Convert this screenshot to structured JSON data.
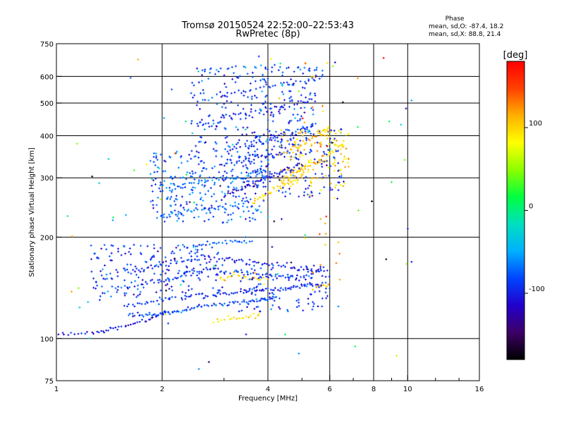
{
  "chart_data": {
    "type": "scatter",
    "title": "Tromsø 20150524 22:52:00–22:53:43",
    "subtitle": "RwPretec (8p)",
    "xlabel": "Frequency [MHz]",
    "ylabel": "Stationary phase Virtual Height [km]",
    "x_scale": "log",
    "y_scale": "log",
    "xlim": [
      1,
      16
    ],
    "ylim": [
      75,
      750
    ],
    "x_ticks": [
      1,
      2,
      4,
      6,
      8,
      10,
      16
    ],
    "x_tick_labels": [
      "1",
      "2",
      "4",
      "6",
      "8",
      "10",
      "16"
    ],
    "x_minor_ticks": [
      3,
      5,
      7,
      9,
      12,
      14
    ],
    "y_ticks": [
      75,
      100,
      200,
      300,
      400,
      500,
      600,
      750
    ],
    "y_tick_labels": [
      "75",
      "100",
      "200",
      "300",
      "400",
      "500",
      "600",
      "750"
    ],
    "grid": true,
    "phase_stats": {
      "heading": "Phase",
      "line_o": "mean, sd,O: -87.4, 18.2",
      "line_x": "mean, sd,X:  88.8, 21.4"
    },
    "colorbar": {
      "label": "[deg]",
      "range": [
        -180,
        180
      ],
      "ticks": [
        100,
        0,
        -100
      ],
      "tick_labels": [
        "100",
        "0",
        "-100"
      ],
      "colormap": [
        "#000000",
        "#3d0066",
        "#2200cc",
        "#0044ff",
        "#00b0ff",
        "#00e0c0",
        "#00ff40",
        "#8cff00",
        "#ffff00",
        "#ffb000",
        "#ff4000",
        "#ff0000"
      ]
    },
    "series": [
      {
        "kind": "trace",
        "segments": [
          [
            [
              1.0,
              103
            ],
            [
              1.3,
              104
            ],
            [
              1.5,
              108
            ],
            [
              1.8,
              113
            ],
            [
              2.05,
              121
            ]
          ]
        ],
        "phase": -105,
        "spread": 0.006,
        "density": 12
      },
      {
        "kind": "trace",
        "segments": [
          [
            [
              1.6,
              118
            ],
            [
              1.9,
              117
            ],
            [
              2.2,
              120
            ],
            [
              2.6,
              125
            ],
            [
              3.2,
              128
            ],
            [
              3.8,
              130
            ],
            [
              4.2,
              133
            ]
          ]
        ],
        "phase": -85,
        "spread": 0.008,
        "density": 16
      },
      {
        "kind": "trace",
        "segments": [
          [
            [
              1.55,
              125
            ],
            [
              2.0,
              130
            ],
            [
              2.8,
              135
            ],
            [
              3.5,
              138
            ],
            [
              4.2,
              140
            ],
            [
              5.0,
              143
            ],
            [
              5.8,
              146
            ]
          ]
        ],
        "phase": -95,
        "spread": 0.01,
        "density": 16
      },
      {
        "kind": "trace",
        "segments": [
          [
            [
              1.5,
              140
            ],
            [
              1.9,
              148
            ],
            [
              2.3,
              155
            ],
            [
              2.7,
              160
            ],
            [
              3.2,
              158
            ],
            [
              3.8,
              155
            ],
            [
              4.5,
              152
            ],
            [
              5.5,
              157
            ]
          ]
        ],
        "phase": -90,
        "spread": 0.012,
        "density": 14
      },
      {
        "kind": "trace",
        "segments": [
          [
            [
              1.6,
              155
            ],
            [
              1.9,
              165
            ],
            [
              2.2,
              170
            ],
            [
              2.6,
              175
            ],
            [
              3.1,
              172
            ],
            [
              3.6,
              168
            ],
            [
              4.2,
              165
            ],
            [
              5.0,
              160
            ],
            [
              5.8,
              162
            ]
          ]
        ],
        "phase": -100,
        "spread": 0.012,
        "density": 12
      },
      {
        "kind": "trace",
        "segments": [
          [
            [
              2.2,
              185
            ],
            [
              2.7,
              190
            ],
            [
              3.2,
              195
            ],
            [
              3.6,
              195
            ]
          ]
        ],
        "phase": -75,
        "spread": 0.01,
        "density": 10
      },
      {
        "kind": "trace",
        "segments": [
          [
            [
              2.0,
              230
            ],
            [
              2.4,
              240
            ],
            [
              2.8,
              245
            ],
            [
              3.3,
              250
            ],
            [
              3.8,
              245
            ]
          ]
        ],
        "phase": -70,
        "spread": 0.012,
        "density": 10
      },
      {
        "kind": "trace",
        "segments": [
          [
            [
              2.0,
              280
            ],
            [
              2.5,
              290
            ],
            [
              3.0,
              300
            ],
            [
              3.5,
              305
            ],
            [
              4.0,
              310
            ]
          ]
        ],
        "phase": -65,
        "spread": 0.014,
        "density": 12
      },
      {
        "kind": "trace",
        "segments": [
          [
            [
              3.0,
              265
            ],
            [
              3.5,
              285
            ],
            [
              4.0,
              300
            ],
            [
              4.5,
              315
            ],
            [
              5.0,
              330
            ]
          ]
        ],
        "phase": -110,
        "spread": 0.01,
        "density": 16
      },
      {
        "kind": "trace",
        "segments": [
          [
            [
              3.0,
              330
            ],
            [
              3.6,
              345
            ],
            [
              4.2,
              350
            ],
            [
              5.0,
              360
            ]
          ]
        ],
        "phase": -95,
        "spread": 0.012,
        "density": 12
      },
      {
        "kind": "trace",
        "segments": [
          [
            [
              3.0,
              360
            ],
            [
              3.6,
              380
            ],
            [
              4.2,
              395
            ],
            [
              4.8,
              410
            ],
            [
              5.5,
              430
            ]
          ]
        ],
        "phase": -90,
        "spread": 0.012,
        "density": 12
      },
      {
        "kind": "trace",
        "segments": [
          [
            [
              2.5,
              430
            ],
            [
              3.0,
              450
            ],
            [
              3.8,
              470
            ],
            [
              4.5,
              490
            ],
            [
              5.5,
              520
            ]
          ]
        ],
        "phase": -100,
        "spread": 0.014,
        "density": 12
      },
      {
        "kind": "trace",
        "segments": [
          [
            [
              2.5,
              500
            ],
            [
              3.2,
              540
            ],
            [
              4.0,
              560
            ],
            [
              5.0,
              580
            ],
            [
              5.8,
              600
            ]
          ]
        ],
        "phase": -85,
        "spread": 0.012,
        "density": 10
      },
      {
        "kind": "trace",
        "segments": [
          [
            [
              2.5,
              620
            ],
            [
              3.2,
              640
            ],
            [
              4.0,
              640
            ],
            [
              5.0,
              630
            ],
            [
              5.8,
              630
            ]
          ]
        ],
        "phase": -70,
        "spread": 0.01,
        "density": 6
      },
      {
        "kind": "trace",
        "segments": [
          [
            [
              5.5,
              160
            ],
            [
              6.0,
              162
            ]
          ]
        ],
        "phase": -95,
        "spread": 0.01,
        "density": 4
      },
      {
        "kind": "trace",
        "segments": [
          [
            [
              2.8,
              112
            ],
            [
              3.3,
              115
            ],
            [
              3.8,
              118
            ]
          ]
        ],
        "phase": 95,
        "spread": 0.008,
        "density": 10
      },
      {
        "kind": "trace",
        "segments": [
          [
            [
              2.9,
              150
            ],
            [
              3.2,
              155
            ],
            [
              3.6,
              150
            ],
            [
              4.0,
              148
            ]
          ]
        ],
        "phase": 100,
        "spread": 0.012,
        "density": 8
      },
      {
        "kind": "trace",
        "segments": [
          [
            [
              3.6,
              255
            ],
            [
              4.0,
              270
            ],
            [
              4.5,
              290
            ],
            [
              4.9,
              300
            ]
          ]
        ],
        "phase": 95,
        "spread": 0.014,
        "density": 12
      },
      {
        "kind": "trace",
        "segments": [
          [
            [
              4.3,
              295
            ],
            [
              4.8,
              310
            ],
            [
              5.2,
              325
            ],
            [
              5.8,
              345
            ],
            [
              6.6,
              380
            ]
          ]
        ],
        "phase": 100,
        "spread": 0.016,
        "density": 14
      },
      {
        "kind": "trace",
        "segments": [
          [
            [
              4.6,
              360
            ],
            [
              5.0,
              380
            ],
            [
              5.5,
              400
            ],
            [
              6.0,
              420
            ]
          ]
        ],
        "phase": 110,
        "spread": 0.014,
        "density": 8
      },
      {
        "kind": "trace",
        "segments": [
          [
            [
              5.3,
              140
            ],
            [
              5.7,
              143
            ],
            [
              6.0,
              145
            ]
          ]
        ],
        "phase": 110,
        "spread": 0.01,
        "density": 4
      },
      {
        "kind": "cloud",
        "x_range": [
          1.25,
          3.0
        ],
        "y_range": [
          130,
          190
        ],
        "n": 190,
        "phase": -90,
        "phase_sd": 18
      },
      {
        "kind": "cloud",
        "x_range": [
          1.85,
          3.9
        ],
        "y_range": [
          220,
          360
        ],
        "n": 260,
        "phase": -80,
        "phase_sd": 22
      },
      {
        "kind": "cloud",
        "x_range": [
          2.4,
          5.5
        ],
        "y_range": [
          360,
          640
        ],
        "n": 240,
        "phase": -88,
        "phase_sd": 18
      },
      {
        "kind": "cloud",
        "x_range": [
          3.5,
          6.6
        ],
        "y_range": [
          260,
          420
        ],
        "n": 150,
        "phase": -95,
        "phase_sd": 16
      },
      {
        "kind": "cloud",
        "x_range": [
          3.3,
          6.2
        ],
        "y_range": [
          120,
          165
        ],
        "n": 90,
        "phase": -92,
        "phase_sd": 16
      },
      {
        "kind": "cloud",
        "x_range": [
          4.3,
          6.8
        ],
        "y_range": [
          280,
          420
        ],
        "n": 120,
        "phase": 100,
        "phase_sd": 14
      },
      {
        "kind": "cloud",
        "x_range": [
          4.8,
          6.5
        ],
        "y_range": [
          140,
          660
        ],
        "n": 40,
        "phase": 110,
        "phase_sd": 30
      },
      {
        "kind": "cloud",
        "x_range": [
          1.0,
          10.5
        ],
        "y_range": [
          80,
          700
        ],
        "n": 90,
        "phase": -20,
        "phase_sd": 90
      }
    ]
  }
}
